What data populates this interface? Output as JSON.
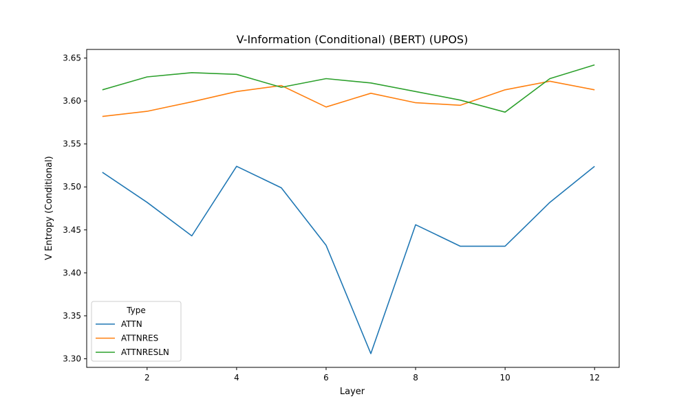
{
  "chart_data": {
    "type": "line",
    "title": "V-Information (Conditional) (BERT) (UPOS)",
    "xlabel": "Layer",
    "ylabel": "V Entropy (Conditional)",
    "x": [
      1,
      2,
      3,
      4,
      5,
      6,
      7,
      8,
      9,
      10,
      11,
      12
    ],
    "xlim": [
      0.65,
      12.55
    ],
    "ylim": [
      3.29,
      3.66
    ],
    "xticks": [
      2,
      4,
      6,
      8,
      10,
      12
    ],
    "yticks": [
      3.3,
      3.35,
      3.4,
      3.45,
      3.5,
      3.55,
      3.6,
      3.65
    ],
    "ytick_labels": [
      "3.30",
      "3.35",
      "3.40",
      "3.45",
      "3.50",
      "3.55",
      "3.60",
      "3.65"
    ],
    "grid": false,
    "legend": {
      "title": "Type",
      "position": "lower-left"
    },
    "series": [
      {
        "name": "ATTN",
        "color": "#1f77b4",
        "values": [
          3.517,
          3.482,
          3.443,
          3.524,
          3.499,
          3.432,
          3.306,
          3.456,
          3.431,
          3.431,
          3.482,
          3.524
        ]
      },
      {
        "name": "ATTNRES",
        "color": "#ff7f0e",
        "values": [
          3.582,
          3.588,
          3.599,
          3.611,
          3.618,
          3.593,
          3.609,
          3.598,
          3.595,
          3.613,
          3.623,
          3.613
        ]
      },
      {
        "name": "ATTNRESLN",
        "color": "#2ca02c",
        "values": [
          3.613,
          3.628,
          3.633,
          3.631,
          3.616,
          3.626,
          3.621,
          3.611,
          3.601,
          3.587,
          3.626,
          3.642
        ]
      }
    ]
  }
}
